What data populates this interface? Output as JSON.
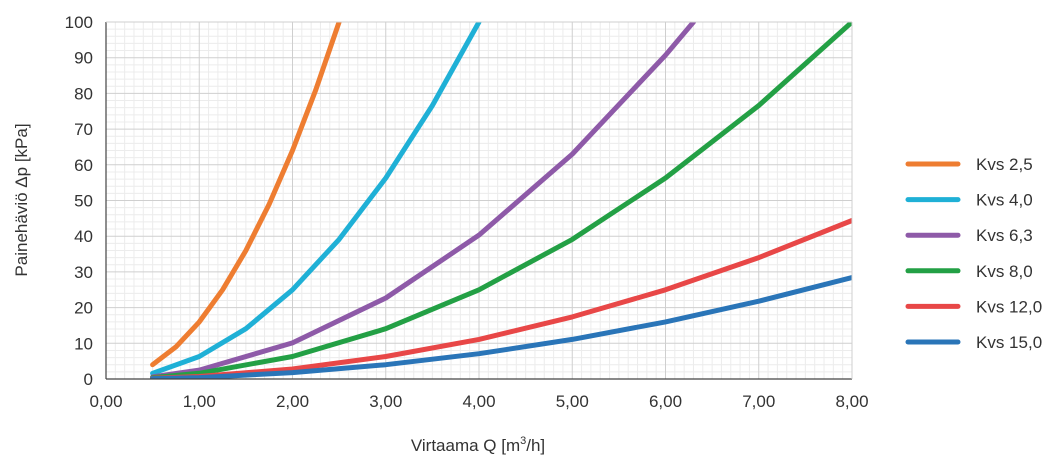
{
  "chart_data": {
    "type": "line",
    "title": "",
    "xlabel_prefix": "Virtaama Q [m",
    "xlabel_sup": "3",
    "xlabel_suffix": "/h]",
    "ylabel": "Painehäviö Δp [kPa]",
    "xlim": [
      0,
      8
    ],
    "ylim": [
      0,
      100
    ],
    "x_ticks": [
      "0,00",
      "1,00",
      "2,00",
      "3,00",
      "4,00",
      "5,00",
      "6,00",
      "7,00",
      "8,00"
    ],
    "y_ticks": [
      "0",
      "10",
      "20",
      "30",
      "40",
      "50",
      "60",
      "70",
      "80",
      "90",
      "100"
    ],
    "grid": true,
    "legend_position": "right",
    "series": [
      {
        "name": "Kvs 2,5",
        "color": "#ee7d31",
        "kvs": 2.5,
        "points": [
          [
            0.5,
            4
          ],
          [
            0.75,
            9
          ],
          [
            1.0,
            16
          ],
          [
            1.25,
            25
          ],
          [
            1.5,
            36
          ],
          [
            1.75,
            49
          ],
          [
            2.0,
            64
          ],
          [
            2.25,
            81
          ],
          [
            2.5,
            100
          ]
        ]
      },
      {
        "name": "Kvs 4,0",
        "color": "#1fb0d6",
        "kvs": 4.0,
        "points": [
          [
            0.5,
            1.6
          ],
          [
            1.0,
            6.3
          ],
          [
            1.5,
            14.1
          ],
          [
            2.0,
            25
          ],
          [
            2.5,
            39.1
          ],
          [
            3.0,
            56.3
          ],
          [
            3.5,
            76.6
          ],
          [
            4.0,
            100
          ]
        ]
      },
      {
        "name": "Kvs 6,3",
        "color": "#8e5aa8",
        "kvs": 6.3,
        "points": [
          [
            0.5,
            0.6
          ],
          [
            1.0,
            2.5
          ],
          [
            2.0,
            10.1
          ],
          [
            3.0,
            22.7
          ],
          [
            4.0,
            40.3
          ],
          [
            5.0,
            63
          ],
          [
            6.0,
            90.7
          ],
          [
            6.3,
            100
          ]
        ]
      },
      {
        "name": "Kvs 8,0",
        "color": "#23a045",
        "kvs": 8.0,
        "points": [
          [
            0.5,
            0.4
          ],
          [
            1.0,
            1.6
          ],
          [
            2.0,
            6.3
          ],
          [
            3.0,
            14.1
          ],
          [
            4.0,
            25
          ],
          [
            5.0,
            39.1
          ],
          [
            6.0,
            56.3
          ],
          [
            7.0,
            76.6
          ],
          [
            8.0,
            100
          ]
        ]
      },
      {
        "name": "Kvs 12,0",
        "color": "#e84747",
        "kvs": 12.0,
        "points": [
          [
            0.5,
            0.2
          ],
          [
            1.0,
            0.7
          ],
          [
            2.0,
            2.8
          ],
          [
            3.0,
            6.3
          ],
          [
            4.0,
            11.1
          ],
          [
            5.0,
            17.4
          ],
          [
            6.0,
            25
          ],
          [
            7.0,
            34
          ],
          [
            8.0,
            44.4
          ]
        ]
      },
      {
        "name": "Kvs 15,0",
        "color": "#2a75b8",
        "kvs": 15.0,
        "points": [
          [
            0.5,
            0.1
          ],
          [
            1.0,
            0.4
          ],
          [
            2.0,
            1.8
          ],
          [
            3.0,
            4
          ],
          [
            4.0,
            7.1
          ],
          [
            5.0,
            11.1
          ],
          [
            6.0,
            16
          ],
          [
            7.0,
            21.8
          ],
          [
            8.0,
            28.4
          ]
        ]
      }
    ]
  }
}
